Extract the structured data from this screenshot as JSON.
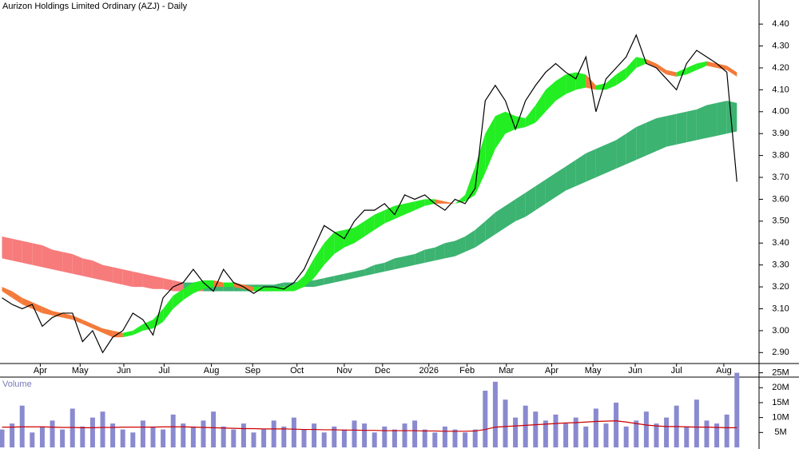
{
  "chart_data": [
    {
      "type": "line",
      "title": "Aurizon Holdings Limited Ordinary (AZJ) - Daily",
      "x": [
        0,
        1,
        2,
        3,
        4,
        5,
        6,
        7,
        8,
        9,
        10,
        11,
        12,
        13,
        14,
        15,
        16,
        17,
        18,
        19,
        20,
        21,
        22,
        23,
        24,
        25,
        26,
        27,
        28,
        29,
        30,
        31,
        32,
        33,
        34,
        35,
        36,
        37,
        38,
        39,
        40,
        41,
        42,
        43,
        44,
        45,
        46,
        47,
        48,
        49,
        50,
        51,
        52,
        53,
        54,
        55,
        56,
        57,
        58,
        59,
        60,
        61,
        62,
        63,
        64,
        65,
        66,
        67,
        68,
        69,
        70,
        71,
        72,
        73
      ],
      "series": [
        {
          "color": "#000000",
          "values": [
            3.15,
            3.12,
            3.1,
            3.12,
            3.02,
            3.06,
            3.08,
            3.08,
            2.95,
            3.0,
            2.9,
            2.97,
            3.0,
            3.08,
            3.05,
            2.98,
            3.15,
            3.2,
            3.22,
            3.28,
            3.22,
            3.18,
            3.28,
            3.22,
            3.2,
            3.17,
            3.2,
            3.2,
            3.19,
            3.22,
            3.28,
            3.38,
            3.48,
            3.45,
            3.42,
            3.5,
            3.55,
            3.55,
            3.58,
            3.53,
            3.62,
            3.6,
            3.62,
            3.58,
            3.55,
            3.6,
            3.58,
            3.65,
            4.05,
            4.12,
            4.05,
            3.92,
            4.05,
            4.12,
            4.18,
            4.22,
            4.18,
            4.15,
            4.25,
            4.0,
            4.15,
            4.2,
            4.25,
            4.35,
            4.22,
            4.2,
            4.15,
            4.1,
            4.22,
            4.28,
            4.25,
            4.22,
            4.18,
            3.68
          ]
        }
      ],
      "bands": [
        {
          "up_color": "#3cb371",
          "down_color": "#f77b7b",
          "upper": [
            3.43,
            3.42,
            3.41,
            3.4,
            3.39,
            3.37,
            3.36,
            3.35,
            3.33,
            3.32,
            3.3,
            3.29,
            3.28,
            3.27,
            3.26,
            3.25,
            3.24,
            3.23,
            3.22,
            3.22,
            3.21,
            3.21,
            3.21,
            3.21,
            3.21,
            3.21,
            3.21,
            3.21,
            3.22,
            3.22,
            3.23,
            3.23,
            3.24,
            3.25,
            3.26,
            3.27,
            3.28,
            3.3,
            3.31,
            3.33,
            3.34,
            3.35,
            3.37,
            3.38,
            3.4,
            3.41,
            3.43,
            3.46,
            3.5,
            3.54,
            3.57,
            3.6,
            3.63,
            3.66,
            3.69,
            3.72,
            3.75,
            3.78,
            3.81,
            3.83,
            3.85,
            3.87,
            3.9,
            3.93,
            3.95,
            3.97,
            3.98,
            3.99,
            4.0,
            4.01,
            4.03,
            4.04,
            4.05,
            4.04
          ],
          "lower": [
            3.33,
            3.32,
            3.31,
            3.3,
            3.29,
            3.28,
            3.27,
            3.26,
            3.25,
            3.24,
            3.23,
            3.22,
            3.21,
            3.2,
            3.2,
            3.19,
            3.19,
            3.18,
            3.18,
            3.18,
            3.18,
            3.18,
            3.18,
            3.18,
            3.18,
            3.18,
            3.18,
            3.18,
            3.19,
            3.19,
            3.2,
            3.2,
            3.21,
            3.22,
            3.23,
            3.24,
            3.25,
            3.26,
            3.27,
            3.28,
            3.29,
            3.3,
            3.31,
            3.32,
            3.33,
            3.34,
            3.36,
            3.38,
            3.41,
            3.44,
            3.47,
            3.5,
            3.52,
            3.55,
            3.58,
            3.61,
            3.64,
            3.66,
            3.68,
            3.7,
            3.72,
            3.74,
            3.76,
            3.78,
            3.8,
            3.82,
            3.84,
            3.85,
            3.86,
            3.87,
            3.88,
            3.89,
            3.9,
            3.91
          ]
        },
        {
          "up_color": "#22ee22",
          "down_color": "#f47a3a",
          "upper": [
            3.2,
            3.18,
            3.15,
            3.13,
            3.11,
            3.09,
            3.08,
            3.07,
            3.05,
            3.03,
            3.01,
            3.0,
            2.99,
            3.0,
            3.03,
            3.05,
            3.1,
            3.16,
            3.19,
            3.22,
            3.23,
            3.23,
            3.22,
            3.22,
            3.21,
            3.2,
            3.2,
            3.2,
            3.2,
            3.21,
            3.25,
            3.33,
            3.4,
            3.45,
            3.46,
            3.47,
            3.5,
            3.53,
            3.55,
            3.57,
            3.58,
            3.59,
            3.6,
            3.6,
            3.59,
            3.58,
            3.62,
            3.75,
            3.9,
            3.98,
            4.0,
            3.98,
            3.97,
            4.03,
            4.1,
            4.14,
            4.17,
            4.18,
            4.17,
            4.12,
            4.13,
            4.17,
            4.2,
            4.25,
            4.24,
            4.22,
            4.19,
            4.18,
            4.2,
            4.22,
            4.23,
            4.22,
            4.21,
            4.18
          ],
          "lower": [
            3.18,
            3.15,
            3.12,
            3.1,
            3.08,
            3.07,
            3.06,
            3.05,
            3.03,
            3.01,
            2.99,
            2.97,
            2.97,
            2.98,
            3.0,
            3.01,
            3.04,
            3.1,
            3.14,
            3.17,
            3.19,
            3.2,
            3.2,
            3.2,
            3.19,
            3.18,
            3.18,
            3.18,
            3.18,
            3.18,
            3.2,
            3.24,
            3.3,
            3.35,
            3.38,
            3.4,
            3.43,
            3.46,
            3.49,
            3.51,
            3.53,
            3.55,
            3.57,
            3.58,
            3.58,
            3.58,
            3.59,
            3.62,
            3.72,
            3.83,
            3.9,
            3.92,
            3.93,
            3.95,
            4.0,
            4.05,
            4.08,
            4.1,
            4.11,
            4.1,
            4.1,
            4.12,
            4.15,
            4.2,
            4.22,
            4.2,
            4.17,
            4.16,
            4.17,
            4.19,
            4.21,
            4.2,
            4.19,
            4.16
          ]
        }
      ],
      "xlim": [
        -0.2,
        75.2
      ],
      "xticks": [
        {
          "value": 3.8,
          "label": "Apr"
        },
        {
          "value": 7.76,
          "label": "May"
        },
        {
          "value": 12.1,
          "label": "Jun"
        },
        {
          "value": 16.1,
          "label": "Jul"
        },
        {
          "value": 20.8,
          "label": "Aug"
        },
        {
          "value": 24.9,
          "label": "Sep"
        },
        {
          "value": 29.3,
          "label": "Oct"
        },
        {
          "value": 34.0,
          "label": "Nov"
        },
        {
          "value": 37.8,
          "label": "Dec"
        },
        {
          "value": 42.4,
          "label": "2026"
        },
        {
          "value": 46.2,
          "label": "Feb"
        },
        {
          "value": 50.1,
          "label": "Mar"
        },
        {
          "value": 54.6,
          "label": "Apr"
        },
        {
          "value": 58.7,
          "label": "May"
        },
        {
          "value": 62.9,
          "label": "Jun"
        },
        {
          "value": 67.0,
          "label": "Jul"
        },
        {
          "value": 71.7,
          "label": "Aug"
        }
      ],
      "ylim": [
        2.85,
        4.51
      ],
      "yticks": [
        {
          "value": 2.9,
          "label": "2.90"
        },
        {
          "value": 3.0,
          "label": "3.00"
        },
        {
          "value": 3.1,
          "label": "3.10"
        },
        {
          "value": 3.2,
          "label": "3.20"
        },
        {
          "value": 3.3,
          "label": "3.30"
        },
        {
          "value": 3.4,
          "label": "3.40"
        },
        {
          "value": 3.5,
          "label": "3.50"
        },
        {
          "value": 3.6,
          "label": "3.60"
        },
        {
          "value": 3.7,
          "label": "3.70"
        },
        {
          "value": 3.8,
          "label": "3.80"
        },
        {
          "value": 3.9,
          "label": "3.90"
        },
        {
          "value": 4.0,
          "label": "4.00"
        },
        {
          "value": 4.1,
          "label": "4.10"
        },
        {
          "value": 4.2,
          "label": "4.20"
        },
        {
          "value": 4.3,
          "label": "4.30"
        },
        {
          "value": 4.4,
          "label": "4.40"
        }
      ]
    },
    {
      "type": "bar",
      "title": "Volume",
      "color": "#8a8ad0",
      "x": [
        0,
        1,
        2,
        3,
        4,
        5,
        6,
        7,
        8,
        9,
        10,
        11,
        12,
        13,
        14,
        15,
        16,
        17,
        18,
        19,
        20,
        21,
        22,
        23,
        24,
        25,
        26,
        27,
        28,
        29,
        30,
        31,
        32,
        33,
        34,
        35,
        36,
        37,
        38,
        39,
        40,
        41,
        42,
        43,
        44,
        45,
        46,
        47,
        48,
        49,
        50,
        51,
        52,
        53,
        54,
        55,
        56,
        57,
        58,
        59,
        60,
        61,
        62,
        63,
        64,
        65,
        66,
        67,
        68,
        69,
        70,
        71,
        72,
        73
      ],
      "values": [
        6,
        8,
        14,
        5,
        7,
        9,
        6,
        13,
        7,
        10,
        12,
        8,
        6,
        5,
        9,
        7,
        6,
        11,
        8,
        7,
        9,
        12,
        7,
        6,
        8,
        5,
        6,
        9,
        7,
        10,
        6,
        8,
        5,
        7,
        6,
        9,
        8,
        5,
        7,
        6,
        8,
        9,
        6,
        5,
        7,
        6,
        5,
        6,
        19,
        22,
        16,
        10,
        14,
        12,
        9,
        11,
        8,
        10,
        7,
        13,
        8,
        15,
        7,
        9,
        12,
        8,
        10,
        14,
        7,
        16,
        9,
        8,
        11,
        25
      ],
      "average": {
        "color": "#cc0000",
        "values": [
          6.8,
          6.8,
          6.9,
          6.9,
          6.9,
          6.8,
          6.7,
          6.7,
          6.6,
          6.6,
          6.7,
          6.7,
          6.8,
          6.8,
          6.8,
          6.8,
          6.9,
          6.9,
          6.9,
          6.8,
          6.7,
          6.6,
          6.5,
          6.4,
          6.3,
          6.3,
          6.2,
          6.2,
          6.2,
          6.1,
          6.0,
          6.0,
          5.9,
          5.9,
          5.8,
          5.8,
          5.7,
          5.7,
          5.6,
          5.6,
          5.6,
          5.6,
          5.5,
          5.5,
          5.4,
          5.4,
          5.4,
          5.5,
          6.0,
          6.8,
          7.0,
          7.2,
          7.4,
          7.6,
          7.8,
          8.0,
          8.2,
          8.3,
          8.5,
          8.7,
          8.8,
          8.9,
          8.5,
          8.0,
          7.5,
          7.2,
          7.0,
          7.0,
          6.9,
          6.8,
          6.8,
          6.7,
          6.6,
          6.6
        ]
      },
      "xlim": [
        -0.2,
        75.2
      ],
      "ylim": [
        0,
        26.5
      ],
      "yticks": [
        {
          "value": 5,
          "label": "5M"
        },
        {
          "value": 10,
          "label": "10M"
        },
        {
          "value": 15,
          "label": "15M"
        },
        {
          "value": 20,
          "label": "20M"
        },
        {
          "value": 25,
          "label": "25M"
        }
      ]
    }
  ]
}
